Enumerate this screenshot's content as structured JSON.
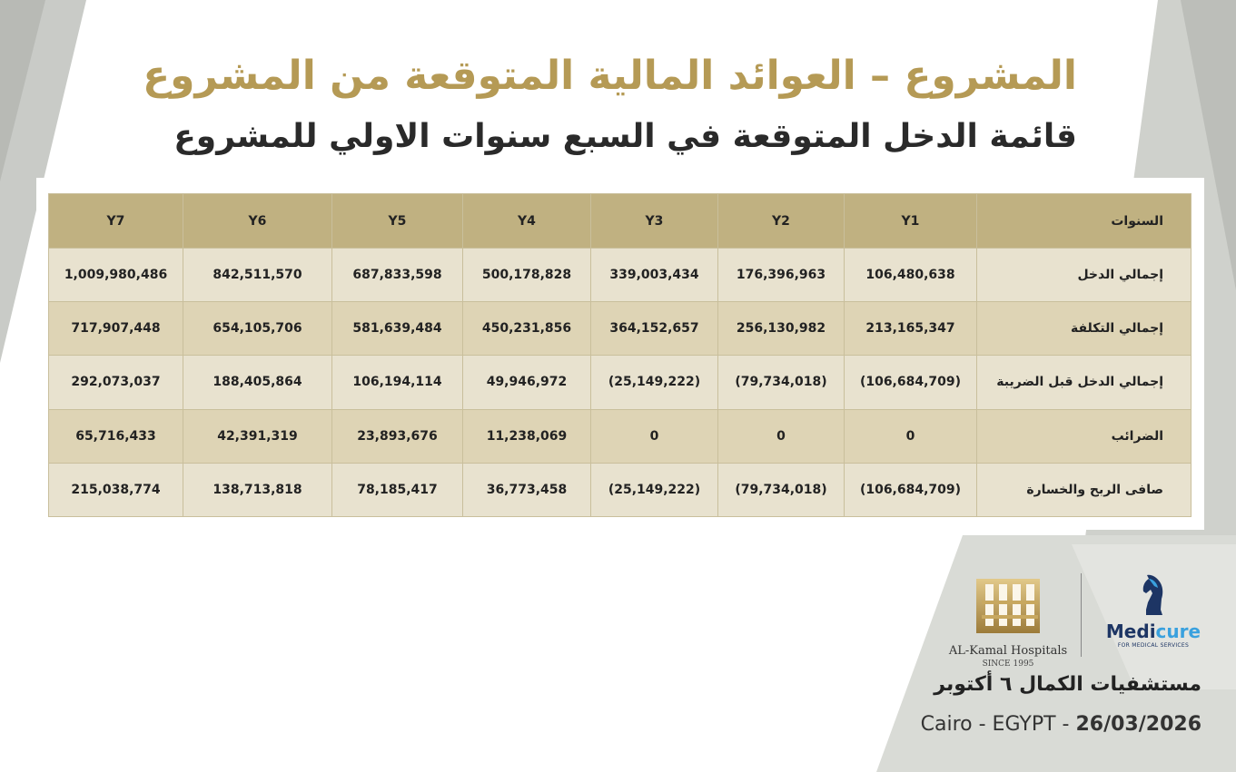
{
  "header": {
    "title": "المشروع –  العوائد المالية المتوقعة من المشروع",
    "subtitle": "قائمة الدخل المتوقعة في السبع سنوات الاولي للمشروع"
  },
  "table": {
    "row_header_label": "السنوات",
    "years": [
      "Y1",
      "Y2",
      "Y3",
      "Y4",
      "Y5",
      "Y6",
      "Y7"
    ],
    "rows": [
      {
        "label": "إجمالي الدخل",
        "values": [
          "106,480,638",
          "176,396,963",
          "339,003,434",
          "500,178,828",
          "687,833,598",
          "842,511,570",
          "1,009,980,486"
        ]
      },
      {
        "label": "إجمالي التكلفة",
        "values": [
          "213,165,347",
          "256,130,982",
          "364,152,657",
          "450,231,856",
          "581,639,484",
          "654,105,706",
          "717,907,448"
        ]
      },
      {
        "label": "إجمالي الدخل قبل الضريبة",
        "values": [
          "(106,684,709)",
          "(79,734,018)",
          "(25,149,222)",
          "49,946,972",
          "106,194,114",
          "188,405,864",
          "292,073,037"
        ]
      },
      {
        "label": "الضرائب",
        "values": [
          "0",
          "0",
          "0",
          "11,238,069",
          "23,893,676",
          "42,391,319",
          "65,716,433"
        ]
      },
      {
        "label": "صافى الربح والخسارة",
        "values": [
          "(106,684,709)",
          "(79,734,018)",
          "(25,149,222)",
          "36,773,458",
          "78,185,417",
          "138,713,818",
          "215,038,774"
        ]
      }
    ]
  },
  "logos": {
    "kamal_name": "AL-Kamal Hospitals",
    "kamal_since": "SINCE 1995",
    "medicure_part1": "Medi",
    "medicure_part2": "cure",
    "medicure_tagline": "FOR MEDICAL SERVICES"
  },
  "footer": {
    "hospital_name": "مستشفيات الكمال ٦ أكتوبر",
    "location": "Cairo - EGYPT - ",
    "date": "26/03/2026"
  },
  "colors": {
    "gold": "#b59a55",
    "table_header": "#c0b181",
    "row_light": "#e8e2cf",
    "row_dark": "#ded4b5",
    "navy": "#1d3564",
    "sky": "#3aa1de"
  }
}
